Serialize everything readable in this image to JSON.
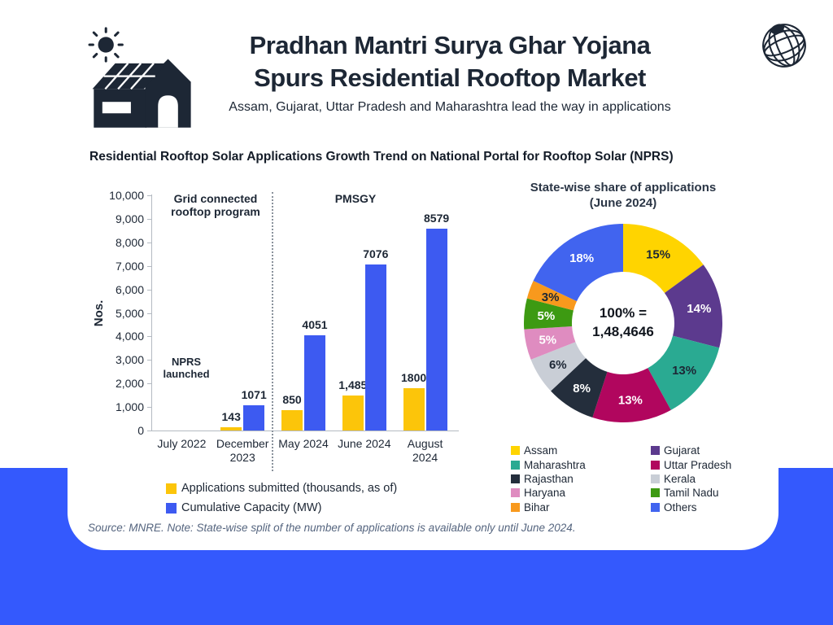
{
  "header": {
    "title_line1": "Pradhan Mantri Surya Ghar Yojana",
    "title_line2": "Spurs Residential Rooftop Market",
    "subtitle": "Assam, Gujarat, Uttar Pradesh and Maharashtra lead the way in applications"
  },
  "section_title": "Residential Rooftop Solar Applications Growth Trend on National Portal for Rooftop Solar (NPRS)",
  "chart_data": [
    {
      "type": "bar",
      "ylabel": "Nos.",
      "ylim": [
        0,
        10000
      ],
      "ytick_step": 1000,
      "ytick_labels": [
        "0",
        "1,000",
        "2,000",
        "3,000",
        "4,000",
        "5,000",
        "6,000",
        "7,000",
        "8,000",
        "9,000",
        "10,000"
      ],
      "categories": [
        "July 2022",
        "December 2023",
        "May 2024",
        "June 2024",
        "August 2024"
      ],
      "series": [
        {
          "name": "Applications submitted (thousands, as of)",
          "color": "#fcc50a",
          "values": [
            0,
            143,
            850,
            1485,
            1800
          ],
          "value_labels": [
            "",
            "143",
            "850",
            "1,485",
            "1800"
          ]
        },
        {
          "name": "Cumulative Capacity (MW)",
          "color": "#3d5af1",
          "values": [
            0,
            1071,
            4051,
            7076,
            8579
          ],
          "value_labels": [
            "",
            "1071",
            "4051",
            "7076",
            "8579"
          ]
        }
      ],
      "annotations": {
        "left_section": "Grid connected rooftop program",
        "right_section": "PMSGY",
        "event": "NPRS launched"
      },
      "section_divider_after": "December 2023",
      "grid": "off",
      "legend_position": "bottom-left"
    },
    {
      "type": "pie",
      "title": "State-wise share of applications (June 2024)",
      "center_label": [
        "100% =",
        "1,48,4646"
      ],
      "total": "1,48,4646",
      "start_angle_deg": 0,
      "direction": "clockwise",
      "donut_hole": true,
      "legend_position": "bottom",
      "slices": [
        {
          "label": "Assam",
          "value_pct": 15,
          "display": "15%",
          "color": "#ffd400",
          "text_color": "#1d2735"
        },
        {
          "label": "Gujarat",
          "value_pct": 14,
          "display": "14%",
          "color": "#5c3a8e",
          "text_color": "#ffffff"
        },
        {
          "label": "Maharashtra",
          "value_pct": 13,
          "display": "13%",
          "color": "#2aaa92",
          "text_color": "#1d2735"
        },
        {
          "label": "Uttar Pradesh",
          "value_pct": 13,
          "display": "13%",
          "color": "#b1065e",
          "text_color": "#ffffff"
        },
        {
          "label": "Rajasthan",
          "value_pct": 8,
          "display": "8%",
          "color": "#242e3c",
          "text_color": "#ffffff"
        },
        {
          "label": "Kerala",
          "value_pct": 6,
          "display": "6%",
          "color": "#c9ced6",
          "text_color": "#1d2735"
        },
        {
          "label": "Haryana",
          "value_pct": 5,
          "display": "5%",
          "color": "#df8cc0",
          "text_color": "#ffffff"
        },
        {
          "label": "Tamil Nadu",
          "value_pct": 5,
          "display": "5%",
          "color": "#3d9a12",
          "text_color": "#ffffff"
        },
        {
          "label": "Bihar",
          "value_pct": 3,
          "display": "3%",
          "color": "#f8991d",
          "text_color": "#1d2735"
        },
        {
          "label": "Others",
          "value_pct": 18,
          "display": "18%",
          "color": "#4164ef",
          "text_color": "#ffffff"
        }
      ]
    }
  ],
  "footer": {
    "source_note": "Source: MNRE. Note: State-wise split of the number of applications is available only until June 2024."
  },
  "colors": {
    "accent_blue": "#3459fd",
    "text_dark": "#1d2735",
    "note_gray": "#55657f"
  }
}
